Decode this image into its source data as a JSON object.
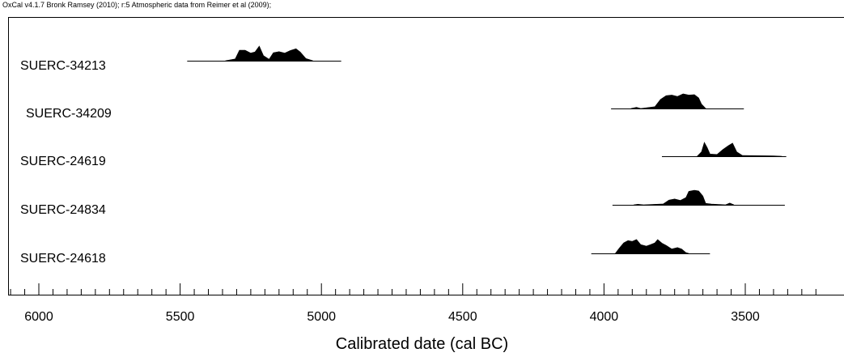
{
  "header": "OxCal v4.1.7 Bronk Ramsey (2010); r:5 Atmospheric data from Reimer et al (2009);",
  "chart_data": {
    "type": "area",
    "xlabel": "Calibrated date (cal BC)",
    "xlim": [
      6110,
      3220
    ],
    "x_ticks": [
      6000,
      5500,
      5000,
      4500,
      4000,
      3500
    ],
    "minor_tick_step": 50,
    "samples": [
      {
        "name": "SUERC-34213",
        "range": [
          5475,
          4930
        ],
        "density": [
          [
            5340,
            0
          ],
          [
            5305,
            0.12
          ],
          [
            5290,
            0.72
          ],
          [
            5270,
            0.72
          ],
          [
            5250,
            0.52
          ],
          [
            5235,
            0.6
          ],
          [
            5220,
            1
          ],
          [
            5205,
            0.35
          ],
          [
            5185,
            0.1
          ],
          [
            5170,
            0.55
          ],
          [
            5150,
            0.62
          ],
          [
            5130,
            0.52
          ],
          [
            5110,
            0.7
          ],
          [
            5090,
            0.82
          ],
          [
            5075,
            0.6
          ],
          [
            5055,
            0.15
          ],
          [
            5030,
            0
          ]
        ]
      },
      {
        "name": "SUERC-34209",
        "range": [
          3975,
          3505
        ],
        "density": [
          [
            3905,
            0
          ],
          [
            3885,
            0.08
          ],
          [
            3870,
            0
          ],
          [
            3820,
            0.12
          ],
          [
            3800,
            0.62
          ],
          [
            3780,
            0.88
          ],
          [
            3760,
            0.92
          ],
          [
            3740,
            0.82
          ],
          [
            3720,
            1
          ],
          [
            3700,
            0.92
          ],
          [
            3680,
            0.95
          ],
          [
            3665,
            0.72
          ],
          [
            3655,
            0.3
          ],
          [
            3640,
            0
          ]
        ]
      },
      {
        "name": "SUERC-24619",
        "range": [
          3795,
          3355
        ],
        "density": [
          [
            3670,
            0
          ],
          [
            3655,
            0.3
          ],
          [
            3645,
            0.95
          ],
          [
            3635,
            0.6
          ],
          [
            3625,
            0.15
          ],
          [
            3600,
            0.12
          ],
          [
            3580,
            0.45
          ],
          [
            3560,
            0.72
          ],
          [
            3545,
            0.9
          ],
          [
            3530,
            0.3
          ],
          [
            3510,
            0.05
          ],
          [
            3400,
            0.03
          ],
          [
            3370,
            0
          ]
        ]
      },
      {
        "name": "SUERC-24834",
        "range": [
          3970,
          3360
        ],
        "density": [
          [
            3895,
            0
          ],
          [
            3880,
            0.04
          ],
          [
            3860,
            0
          ],
          [
            3790,
            0.06
          ],
          [
            3770,
            0.32
          ],
          [
            3750,
            0.4
          ],
          [
            3730,
            0.3
          ],
          [
            3710,
            0.5
          ],
          [
            3700,
            0.92
          ],
          [
            3680,
            1
          ],
          [
            3665,
            0.95
          ],
          [
            3650,
            0.6
          ],
          [
            3640,
            0.1
          ],
          [
            3620,
            0.05
          ],
          [
            3570,
            0
          ],
          [
            3555,
            0.12
          ],
          [
            3540,
            0
          ]
        ]
      },
      {
        "name": "SUERC-24618",
        "range": [
          4045,
          3625
        ],
        "density": [
          [
            3960,
            0
          ],
          [
            3945,
            0.38
          ],
          [
            3930,
            0.72
          ],
          [
            3915,
            0.88
          ],
          [
            3900,
            0.82
          ],
          [
            3885,
            0.95
          ],
          [
            3870,
            0.6
          ],
          [
            3850,
            0.5
          ],
          [
            3835,
            0.6
          ],
          [
            3820,
            0.72
          ],
          [
            3810,
            0.95
          ],
          [
            3795,
            0.7
          ],
          [
            3780,
            0.55
          ],
          [
            3760,
            0.3
          ],
          [
            3740,
            0.4
          ],
          [
            3725,
            0.3
          ],
          [
            3710,
            0.05
          ],
          [
            3700,
            0
          ]
        ]
      }
    ]
  }
}
